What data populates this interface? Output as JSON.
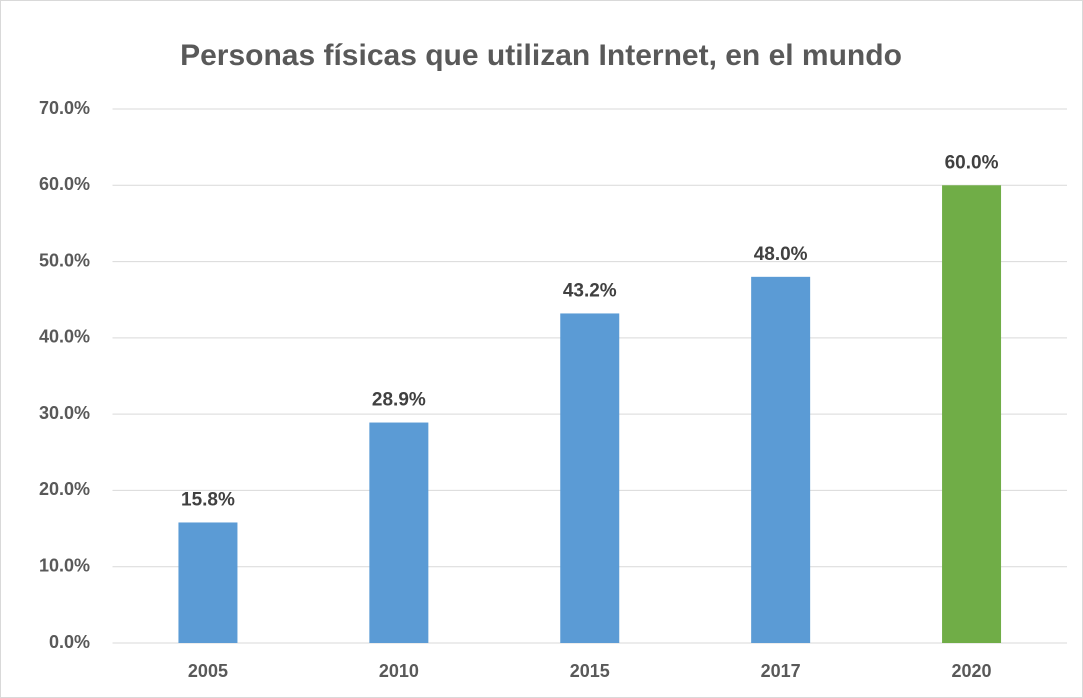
{
  "chart_data": {
    "type": "bar",
    "title": "Personas físicas que utilizan Internet, en el mundo",
    "categories": [
      "2005",
      "2010",
      "2015",
      "2017",
      "2020"
    ],
    "values": [
      15.8,
      28.9,
      43.2,
      48.0,
      60.0
    ],
    "value_labels": [
      "15.8%",
      "28.9%",
      "43.2%",
      "48.0%",
      "60.0%"
    ],
    "colors": [
      "#5b9bd5",
      "#5b9bd5",
      "#5b9bd5",
      "#5b9bd5",
      "#70ad47"
    ],
    "ylim": [
      0,
      70
    ],
    "yticks": [
      {
        "value": 0,
        "label": "0.0%"
      },
      {
        "value": 10,
        "label": "10.0%"
      },
      {
        "value": 20,
        "label": "20.0%"
      },
      {
        "value": 30,
        "label": "30.0%"
      },
      {
        "value": 40,
        "label": "40.0%"
      },
      {
        "value": 50,
        "label": "50.0%"
      },
      {
        "value": 60,
        "label": "60.0%"
      },
      {
        "value": 70,
        "label": "70.0%"
      }
    ],
    "grid": true
  }
}
